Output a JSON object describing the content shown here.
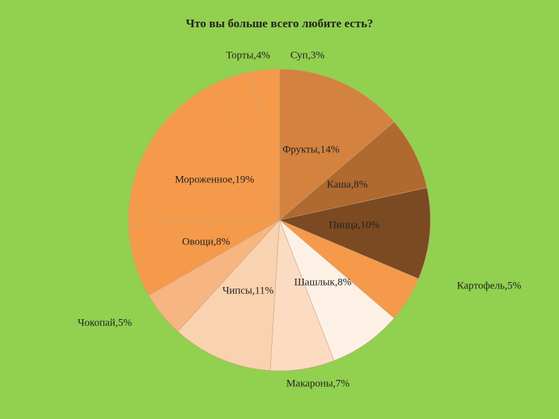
{
  "chart_data": {
    "type": "pie",
    "title": "Что вы больше всего любите есть?",
    "values": [
      14,
      8,
      10,
      5,
      8,
      7,
      11,
      5,
      8,
      19,
      4,
      3
    ],
    "value_labels": [
      "Фрукты,14%",
      "Каша,8%",
      "Пицца,10%",
      "Картофель,5%",
      "Шашлык,8%",
      "Макароны,7%",
      "Чипсы,11%",
      "Чокопай,5%",
      "Овощи,8%",
      "Мороженное,19%",
      "Торты,4%",
      "Суп,3%"
    ],
    "colors": [
      "#d4823f",
      "#b0692f",
      "#7b4a22",
      "#f59a4a",
      "#fdf1e6",
      "#fbdcc2",
      "#f9d2b0",
      "#f7b581",
      "#f59a4a",
      "#f59a4a",
      "#f59a4a",
      "#f59a4a"
    ]
  }
}
